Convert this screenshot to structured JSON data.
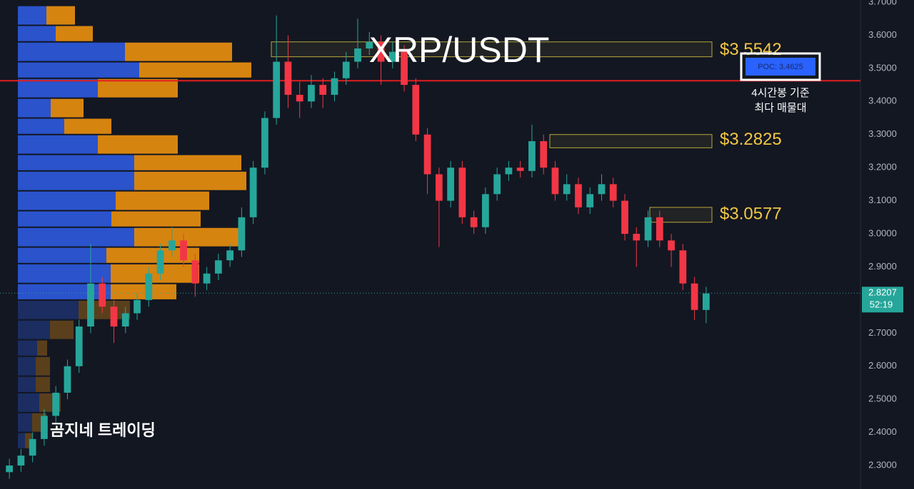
{
  "chart_data": {
    "type": "candlestick",
    "title": "XRP/USDT",
    "watermark": "곰지네 트레이딩",
    "ylim": [
      2.2915,
      3.7065
    ],
    "yticks": [
      {
        "value": 2.3,
        "label": "2.3000"
      },
      {
        "value": 2.4,
        "label": "2.4000"
      },
      {
        "value": 2.5,
        "label": "2.5000"
      },
      {
        "value": 2.6,
        "label": "2.6000"
      },
      {
        "value": 2.7,
        "label": "2.7000"
      },
      {
        "value": 2.8,
        "label": "2.8000"
      },
      {
        "value": 2.9,
        "label": "2.9000"
      },
      {
        "value": 3.0,
        "label": "3.0000"
      },
      {
        "value": 3.1,
        "label": "3.1000"
      },
      {
        "value": 3.2,
        "label": "3.2000"
      },
      {
        "value": 3.3,
        "label": "3.3000"
      },
      {
        "value": 3.4,
        "label": "3.4000"
      },
      {
        "value": 3.5,
        "label": "3.5000"
      },
      {
        "value": 3.6,
        "label": "3.6000"
      },
      {
        "value": 3.7,
        "label": "3.7000"
      }
    ],
    "up_color": "#26a69a",
    "down_color": "#f23645",
    "open": [
      2.28,
      2.3,
      2.33,
      2.38,
      2.45,
      2.52,
      2.6,
      2.72,
      2.85,
      2.78,
      2.72,
      2.76,
      2.8,
      2.88,
      2.95,
      2.98,
      2.92,
      2.85,
      2.88,
      2.92,
      2.95,
      3.05,
      3.2,
      3.35,
      3.52,
      3.42,
      3.4,
      3.45,
      3.42,
      3.47,
      3.52,
      3.56,
      3.58,
      3.52,
      3.55,
      3.45,
      3.3,
      3.18,
      3.1,
      3.2,
      3.05,
      3.02,
      3.12,
      3.18,
      3.2,
      3.19,
      3.28,
      3.2,
      3.12,
      3.15,
      3.08,
      3.12,
      3.15,
      3.1,
      3.0,
      2.98,
      3.05,
      2.98,
      2.95,
      2.85,
      2.77
    ],
    "high": [
      2.32,
      2.35,
      2.4,
      2.47,
      2.54,
      2.62,
      2.74,
      2.97,
      2.87,
      2.8,
      2.78,
      2.82,
      2.9,
      2.97,
      3.02,
      3.0,
      2.94,
      2.9,
      2.94,
      2.97,
      3.08,
      3.22,
      3.37,
      3.66,
      3.6,
      3.46,
      3.48,
      3.47,
      3.49,
      3.55,
      3.65,
      3.61,
      3.6,
      3.58,
      3.57,
      3.47,
      3.32,
      3.2,
      3.22,
      3.22,
      3.07,
      3.14,
      3.2,
      3.22,
      3.22,
      3.33,
      3.3,
      3.22,
      3.18,
      3.17,
      3.14,
      3.18,
      3.17,
      3.12,
      3.02,
      3.07,
      3.07,
      3.0,
      2.97,
      2.87,
      2.84
    ],
    "low": [
      2.26,
      2.28,
      2.31,
      2.36,
      2.43,
      2.5,
      2.58,
      2.7,
      2.76,
      2.67,
      2.7,
      2.74,
      2.78,
      2.86,
      2.93,
      2.9,
      2.81,
      2.83,
      2.86,
      2.9,
      2.93,
      3.03,
      3.18,
      3.33,
      3.38,
      3.35,
      3.38,
      3.38,
      3.4,
      3.45,
      3.5,
      3.54,
      3.45,
      3.5,
      3.43,
      3.28,
      3.12,
      2.96,
      3.08,
      3.03,
      3.0,
      3.0,
      3.1,
      3.16,
      3.17,
      3.17,
      3.18,
      3.1,
      3.1,
      3.06,
      3.06,
      3.1,
      3.08,
      2.98,
      2.9,
      2.96,
      2.96,
      2.9,
      2.83,
      2.74,
      2.73
    ],
    "close": [
      2.3,
      2.33,
      2.38,
      2.45,
      2.52,
      2.6,
      2.72,
      2.85,
      2.78,
      2.72,
      2.76,
      2.8,
      2.88,
      2.95,
      2.98,
      2.92,
      2.85,
      2.88,
      2.92,
      2.95,
      3.05,
      3.2,
      3.35,
      3.52,
      3.42,
      3.4,
      3.45,
      3.42,
      3.47,
      3.52,
      3.56,
      3.58,
      3.52,
      3.55,
      3.45,
      3.3,
      3.18,
      3.1,
      3.2,
      3.05,
      3.02,
      3.12,
      3.18,
      3.2,
      3.19,
      3.28,
      3.2,
      3.12,
      3.15,
      3.08,
      3.12,
      3.15,
      3.1,
      3.0,
      2.98,
      3.05,
      2.98,
      2.95,
      2.85,
      2.77,
      2.82
    ],
    "volume_profile": {
      "bins": [
        3.69,
        3.63,
        3.58,
        3.52,
        3.47,
        3.41,
        3.35,
        3.3,
        3.24,
        3.19,
        3.13,
        3.07,
        3.02,
        2.96,
        2.91,
        2.85,
        2.8,
        2.74,
        2.68,
        2.63,
        2.57,
        2.52,
        2.46,
        2.4,
        2.35
      ],
      "buy": [
        40,
        53,
        150,
        170,
        112,
        46,
        65,
        112,
        163,
        163,
        137,
        131,
        163,
        124,
        130,
        130,
        85,
        45,
        27,
        25,
        25,
        30,
        20,
        10
      ],
      "sell": [
        40,
        52,
        150,
        157,
        112,
        46,
        66,
        112,
        150,
        157,
        131,
        125,
        150,
        130,
        124,
        92,
        72,
        33,
        14,
        20,
        20,
        30,
        20,
        10
      ],
      "buy_color": "#2b56d6",
      "sell_color": "#e08a10"
    },
    "zones": [
      {
        "label": "$3.5542",
        "value": 3.5542,
        "top": 3.58,
        "bottom": 3.535
      },
      {
        "label": "$3.2825",
        "value": 3.2825,
        "top": 3.3,
        "bottom": 3.26
      },
      {
        "label": "$3.0577",
        "value": 3.0577,
        "top": 3.08,
        "bottom": 3.035
      }
    ],
    "poc": {
      "label": "POC: 3.4625",
      "value": 3.4625,
      "color": "#e01e1e"
    },
    "annotations": [
      "4시간봉 기준",
      "최다 매물대"
    ],
    "last_price": 2.8207,
    "countdown": "52:19"
  }
}
